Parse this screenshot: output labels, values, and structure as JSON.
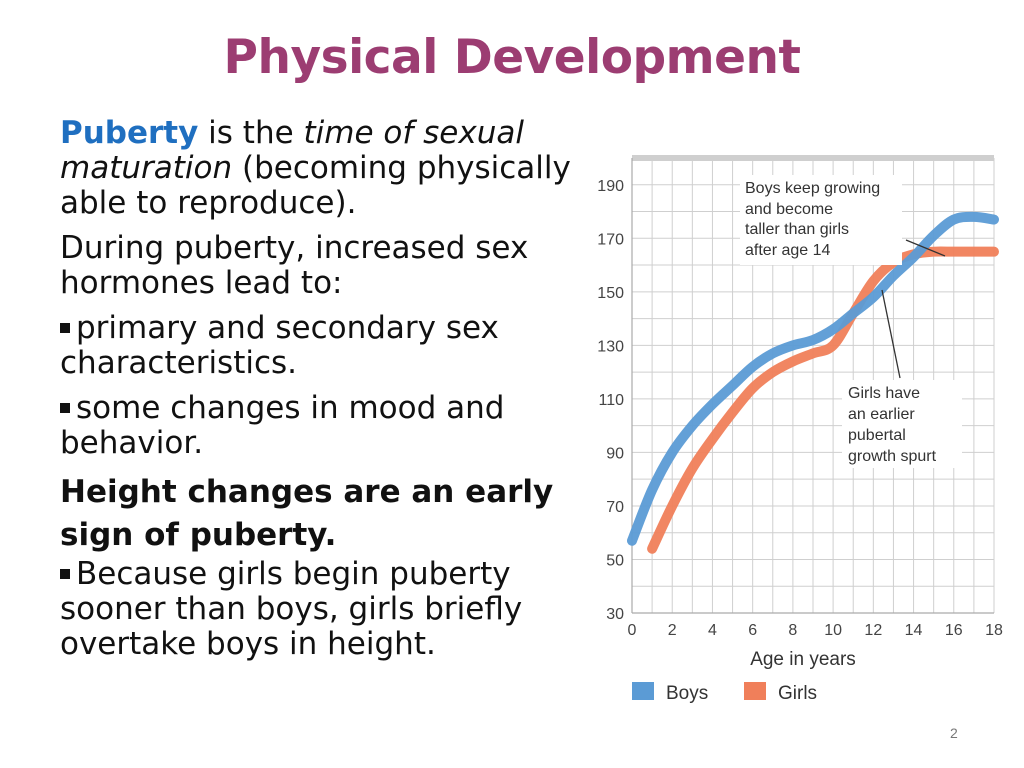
{
  "slide": {
    "title": "Physical Development",
    "page_number": "2",
    "p1": {
      "term": "Puberty",
      "t1": " is the ",
      "italic": "time of sexual maturation",
      "t2": " (becoming physically able to reproduce)."
    },
    "p2": "During puberty, increased sex hormones lead to:",
    "b1": "primary and secondary sex characteristics.",
    "b2": "some changes in mood and behavior.",
    "p3": "Height changes are an early sign of puberty.",
    "b3": "Because girls begin puberty sooner than boys, girls briefly overtake boys in height."
  },
  "chart_data": {
    "type": "line",
    "xlabel": "Age in years",
    "ylabel": "",
    "xlim": [
      0,
      18
    ],
    "ylim": [
      30,
      200
    ],
    "x_ticks": [
      0,
      2,
      4,
      6,
      8,
      10,
      12,
      14,
      16,
      18
    ],
    "y_ticks": [
      30,
      50,
      70,
      90,
      110,
      130,
      150,
      170,
      190
    ],
    "grid": true,
    "legend_position": "bottom",
    "series": [
      {
        "name": "Boys",
        "color": "#5b9bd5",
        "x": [
          0,
          1,
          2,
          3,
          4,
          5,
          6,
          7,
          8,
          9,
          10,
          11,
          12,
          13,
          14,
          15,
          16,
          17,
          18
        ],
        "y": [
          57,
          76,
          90,
          100,
          108,
          115,
          122,
          127,
          130,
          132,
          136,
          142,
          148,
          156,
          163,
          171,
          177,
          178,
          177
        ]
      },
      {
        "name": "Girls",
        "color": "#f07f5a",
        "x": [
          1,
          2,
          3,
          4,
          5,
          6,
          7,
          8,
          9,
          10,
          11,
          12,
          13,
          14,
          15,
          16,
          17,
          18
        ],
        "y": [
          54,
          70,
          84,
          95,
          105,
          114,
          120,
          124,
          127,
          130,
          142,
          154,
          161,
          164,
          165,
          165,
          165,
          165
        ]
      }
    ],
    "annotations": [
      {
        "text": [
          "Boys keep growing",
          "and become",
          "taller than girls",
          "after age 14"
        ]
      },
      {
        "text": [
          "Girls have",
          "an earlier",
          "pubertal",
          "growth spurt"
        ]
      }
    ]
  }
}
